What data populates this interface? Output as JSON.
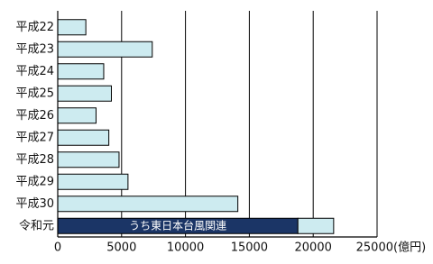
{
  "chart_data": {
    "type": "bar",
    "orientation": "horizontal",
    "stacked": true,
    "categories": [
      "平成22",
      "平成23",
      "平成24",
      "平成25",
      "平成26",
      "平成27",
      "平成28",
      "平成29",
      "平成30",
      "令和元"
    ],
    "series": [
      {
        "name": "うち東日本台風関連",
        "color": "#1b3566",
        "values": [
          null,
          null,
          null,
          null,
          null,
          null,
          null,
          null,
          null,
          18800
        ]
      },
      {
        "color": "#cdebf0",
        "values": [
          2200,
          7400,
          3600,
          4200,
          3000,
          4000,
          4800,
          5500,
          14100,
          2800
        ]
      }
    ],
    "xlim": [
      0,
      25000
    ],
    "xticks": [
      0,
      5000,
      10000,
      15000,
      20000,
      25000
    ],
    "xlabel": "(億円)",
    "grid": true
  }
}
